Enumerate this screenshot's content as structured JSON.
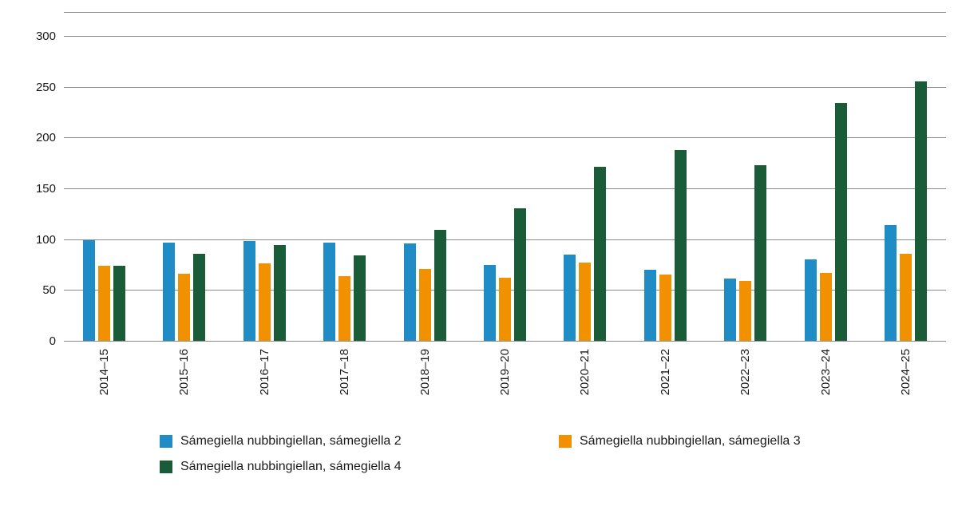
{
  "chart_data": {
    "type": "bar",
    "title": "",
    "xlabel": "",
    "ylabel": "",
    "ylim": [
      0,
      300
    ],
    "ytick_interval": 50,
    "grid": true,
    "legend_position": "bottom",
    "categories": [
      "2014–15",
      "2015–16",
      "2016–17",
      "2017–18",
      "2018–19",
      "2019–20",
      "2020–21",
      "2021–22",
      "2022–23",
      "2023–24",
      "2024–25"
    ],
    "series": [
      {
        "name": "Sámegiella nubbingiellan, sámegiella 2",
        "color": "#1f8cc6",
        "values": [
          99,
          97,
          98,
          97,
          96,
          75,
          85,
          70,
          61,
          80,
          114
        ]
      },
      {
        "name": "Sámegiella nubbingiellan, sámegiella 3",
        "color": "#f29100",
        "values": [
          74,
          66,
          76,
          64,
          71,
          62,
          77,
          65,
          59,
          67,
          86
        ]
      },
      {
        "name": "Sámegiella nubbingiellan, sámegiella 4",
        "color": "#1a5c38",
        "values": [
          74,
          86,
          94,
          84,
          109,
          130,
          171,
          188,
          173,
          234,
          255
        ]
      }
    ]
  }
}
